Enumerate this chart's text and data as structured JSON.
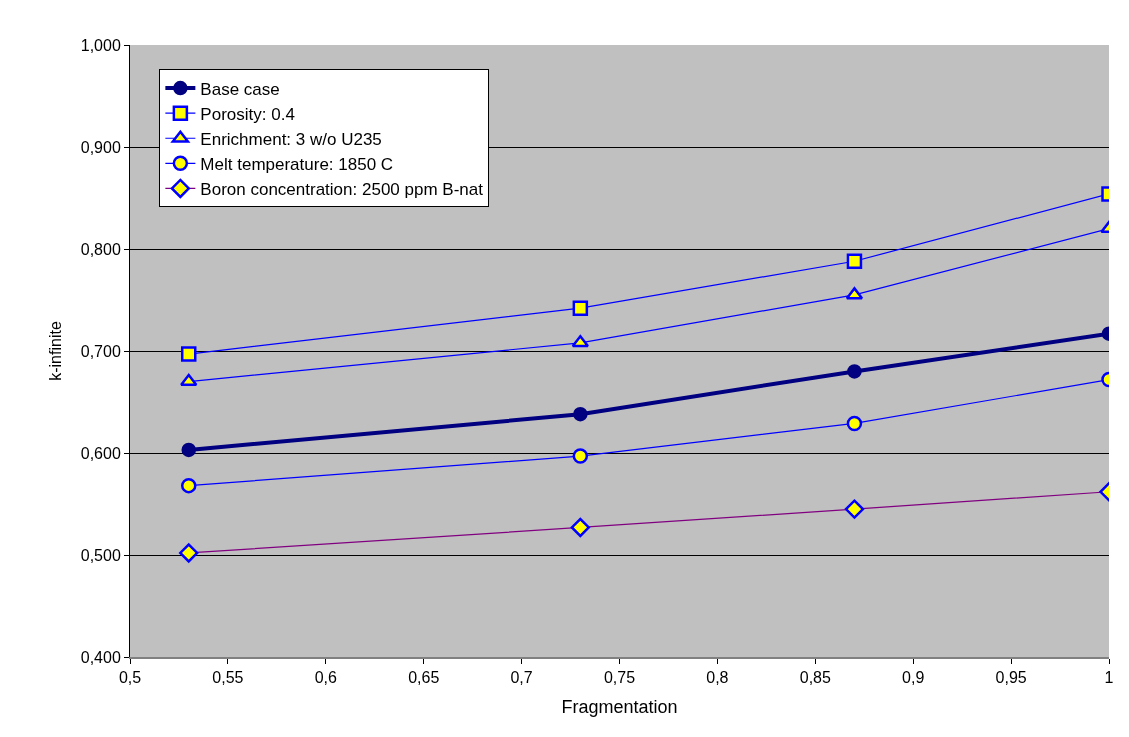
{
  "chart_data": {
    "type": "line",
    "xlabel": "Fragmentation",
    "ylabel": "k-infinite",
    "x": [
      0.53,
      0.73,
      0.87,
      1.0
    ],
    "series": [
      {
        "name": "Base case",
        "color": "#000080",
        "marker": "circle",
        "values": [
          0.603,
          0.638,
          0.68,
          0.717
        ]
      },
      {
        "name": "Porosity: 0.4",
        "color": "#0000ff",
        "marker": "square",
        "values": [
          0.697,
          0.742,
          0.788,
          0.854
        ]
      },
      {
        "name": "Enrichment: 3 w/o U235",
        "color": "#0000ff",
        "marker": "triangle",
        "values": [
          0.67,
          0.708,
          0.755,
          0.82
        ]
      },
      {
        "name": "Melt temperature: 1850 C",
        "color": "#0000ff",
        "marker": "circle",
        "values": [
          0.568,
          0.597,
          0.629,
          0.672
        ]
      },
      {
        "name": "Boron concentration: 2500 ppm B-nat",
        "color": "#800080",
        "marker": "diamond",
        "values": [
          0.502,
          0.527,
          0.545,
          0.562
        ]
      }
    ],
    "xlim": [
      0.5,
      1.0
    ],
    "xticks": [
      {
        "value": 0.5,
        "label": "0,5"
      },
      {
        "value": 0.55,
        "label": "0,55"
      },
      {
        "value": 0.6,
        "label": "0,6"
      },
      {
        "value": 0.65,
        "label": "0,65"
      },
      {
        "value": 0.7,
        "label": "0,7"
      },
      {
        "value": 0.75,
        "label": "0,75"
      },
      {
        "value": 0.8,
        "label": "0,8"
      },
      {
        "value": 0.85,
        "label": "0,85"
      },
      {
        "value": 0.9,
        "label": "0,9"
      },
      {
        "value": 0.95,
        "label": "0,95"
      },
      {
        "value": 1.0,
        "label": "1"
      }
    ],
    "ylim": [
      0.4,
      1.0
    ],
    "yticks": [
      {
        "value": 0.4,
        "label": "0,400"
      },
      {
        "value": 0.5,
        "label": "0,500"
      },
      {
        "value": 0.6,
        "label": "0,600"
      },
      {
        "value": 0.7,
        "label": "0,700"
      },
      {
        "value": 0.8,
        "label": "0,800"
      },
      {
        "value": 0.9,
        "label": "0,900"
      },
      {
        "value": 1.0,
        "label": "1,000"
      }
    ],
    "grid": "y",
    "legend": "top left",
    "line_style": "solid"
  }
}
